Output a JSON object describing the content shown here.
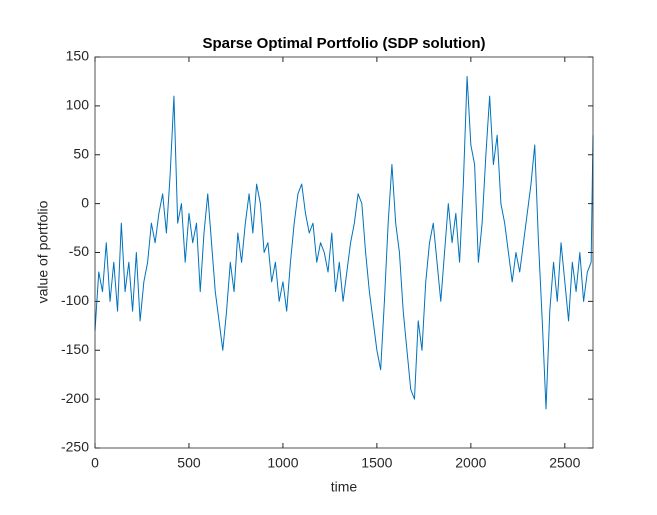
{
  "chart_data": {
    "type": "line",
    "title": "Sparse Optimal Portfolio (SDP solution)",
    "x_label": "time",
    "y_label": "value of portfolio",
    "color": "#0072bd",
    "x": [
      0,
      20,
      40,
      60,
      80,
      100,
      120,
      140,
      160,
      180,
      200,
      220,
      240,
      260,
      280,
      300,
      320,
      340,
      360,
      380,
      400,
      420,
      440,
      460,
      480,
      500,
      520,
      540,
      560,
      580,
      600,
      620,
      640,
      660,
      680,
      700,
      720,
      740,
      760,
      780,
      800,
      820,
      840,
      860,
      880,
      900,
      920,
      940,
      960,
      980,
      1000,
      1020,
      1040,
      1060,
      1080,
      1100,
      1120,
      1140,
      1160,
      1180,
      1200,
      1220,
      1240,
      1260,
      1280,
      1300,
      1320,
      1340,
      1360,
      1380,
      1400,
      1420,
      1440,
      1460,
      1480,
      1500,
      1520,
      1540,
      1560,
      1580,
      1600,
      1620,
      1640,
      1660,
      1680,
      1700,
      1720,
      1740,
      1760,
      1780,
      1800,
      1820,
      1840,
      1860,
      1880,
      1900,
      1920,
      1940,
      1960,
      1980,
      2000,
      2020,
      2040,
      2060,
      2080,
      2100,
      2120,
      2140,
      2160,
      2180,
      2200,
      2220,
      2240,
      2260,
      2280,
      2300,
      2320,
      2340,
      2360,
      2380,
      2400,
      2420,
      2440,
      2460,
      2480,
      2500,
      2520,
      2540,
      2560,
      2580,
      2600,
      2620,
      2640,
      2650
    ],
    "values": [
      -130,
      -70,
      -90,
      -40,
      -100,
      -60,
      -110,
      -20,
      -90,
      -60,
      -110,
      -50,
      -120,
      -80,
      -60,
      -20,
      -40,
      -10,
      10,
      -30,
      30,
      110,
      -20,
      0,
      -60,
      -10,
      -40,
      -20,
      -90,
      -30,
      10,
      -40,
      -90,
      -120,
      -150,
      -110,
      -60,
      -90,
      -30,
      -60,
      -20,
      10,
      -30,
      20,
      0,
      -50,
      -40,
      -80,
      -60,
      -100,
      -80,
      -110,
      -60,
      -20,
      10,
      20,
      -10,
      -30,
      -20,
      -60,
      -40,
      -50,
      -70,
      -30,
      -90,
      -60,
      -100,
      -70,
      -40,
      -20,
      10,
      0,
      -50,
      -90,
      -120,
      -150,
      -170,
      -100,
      -20,
      40,
      -20,
      -50,
      -110,
      -150,
      -190,
      -200,
      -120,
      -150,
      -80,
      -40,
      -20,
      -60,
      -100,
      -50,
      0,
      -40,
      -10,
      -60,
      20,
      130,
      60,
      40,
      -60,
      -20,
      50,
      110,
      40,
      70,
      0,
      -20,
      -50,
      -80,
      -50,
      -70,
      -40,
      -10,
      20,
      60,
      -40,
      -120,
      -210,
      -110,
      -60,
      -100,
      -40,
      -80,
      -120,
      -60,
      -90,
      -50,
      -100,
      -70,
      -60,
      70
    ],
    "xlim": [
      0,
      2650
    ],
    "xticks": [
      0,
      500,
      1000,
      1500,
      2000,
      2500
    ],
    "ylim": [
      -250,
      150
    ],
    "yticks": [
      -250,
      -200,
      -150,
      -100,
      -50,
      0,
      50,
      100,
      150
    ]
  }
}
